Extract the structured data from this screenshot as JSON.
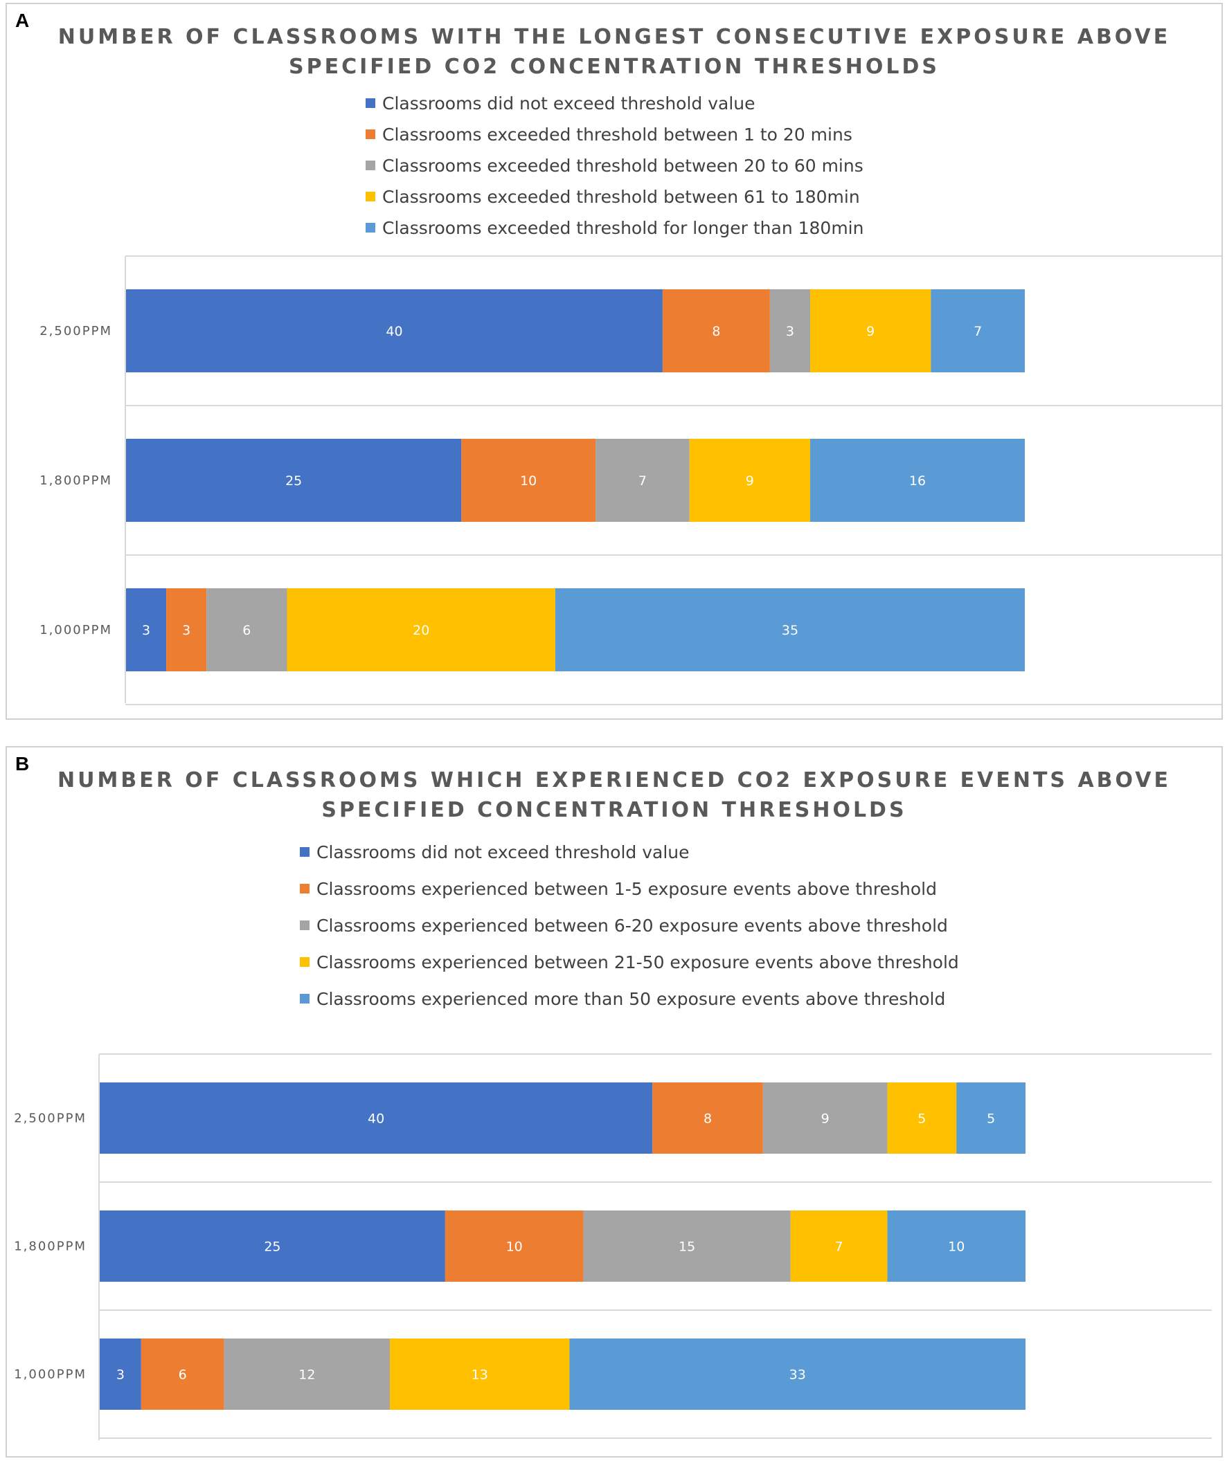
{
  "chart_data": [
    {
      "panel": "A",
      "type": "bar",
      "orientation": "horizontal",
      "stacked": true,
      "title_lines": [
        "NUMBER OF CLASSROOMS WITH THE LONGEST CONSECUTIVE EXPOSURE ABOVE",
        "SPECIFIED CO2 CONCENTRATION THRESHOLDS"
      ],
      "categories": [
        "2,500PPM",
        "1,800PPM",
        "1,000PPM"
      ],
      "series": [
        {
          "name": "Classrooms did not exceed threshold value",
          "color": "#4472C4",
          "values": [
            40,
            25,
            3
          ]
        },
        {
          "name": "Classrooms exceeded threshold between 1 to 20 mins",
          "color": "#ED7D31",
          "values": [
            8,
            10,
            3
          ]
        },
        {
          "name": "Classrooms exceeded threshold between 20 to 60 mins",
          "color": "#A5A5A5",
          "values": [
            3,
            7,
            6
          ]
        },
        {
          "name": "Classrooms exceeded threshold between 61 to 180min",
          "color": "#FFC000",
          "values": [
            9,
            9,
            20
          ]
        },
        {
          "name": "Classrooms exceeded threshold for longer than 180min",
          "color": "#5B9BD5",
          "values": [
            7,
            16,
            35
          ]
        }
      ],
      "legend_position": "top",
      "xlim": [
        0,
        67
      ],
      "grid": true
    },
    {
      "panel": "B",
      "type": "bar",
      "orientation": "horizontal",
      "stacked": true,
      "title_lines": [
        "NUMBER OF CLASSROOMS WHICH EXPERIENCED CO2 EXPOSURE EVENTS ABOVE",
        "SPECIFIED CONCENTRATION THRESHOLDS"
      ],
      "categories": [
        "2,500PPM",
        "1,800PPM",
        "1,000PPM"
      ],
      "series": [
        {
          "name": "Classrooms did not exceed threshold value",
          "color": "#4472C4",
          "values": [
            40,
            25,
            3
          ]
        },
        {
          "name": "Classrooms experienced between 1-5 exposure events above threshold",
          "color": "#ED7D31",
          "values": [
            8,
            10,
            6
          ]
        },
        {
          "name": "Classrooms experienced between 6-20 exposure events above threshold",
          "color": "#A5A5A5",
          "values": [
            9,
            15,
            12
          ]
        },
        {
          "name": "Classrooms experienced between 21-50 exposure events above threshold",
          "color": "#FFC000",
          "values": [
            5,
            7,
            13
          ]
        },
        {
          "name": "Classrooms experienced more than 50 exposure events above threshold",
          "color": "#5B9BD5",
          "values": [
            5,
            10,
            33
          ]
        }
      ],
      "legend_position": "top",
      "xlim": [
        0,
        67
      ],
      "grid": true
    }
  ]
}
